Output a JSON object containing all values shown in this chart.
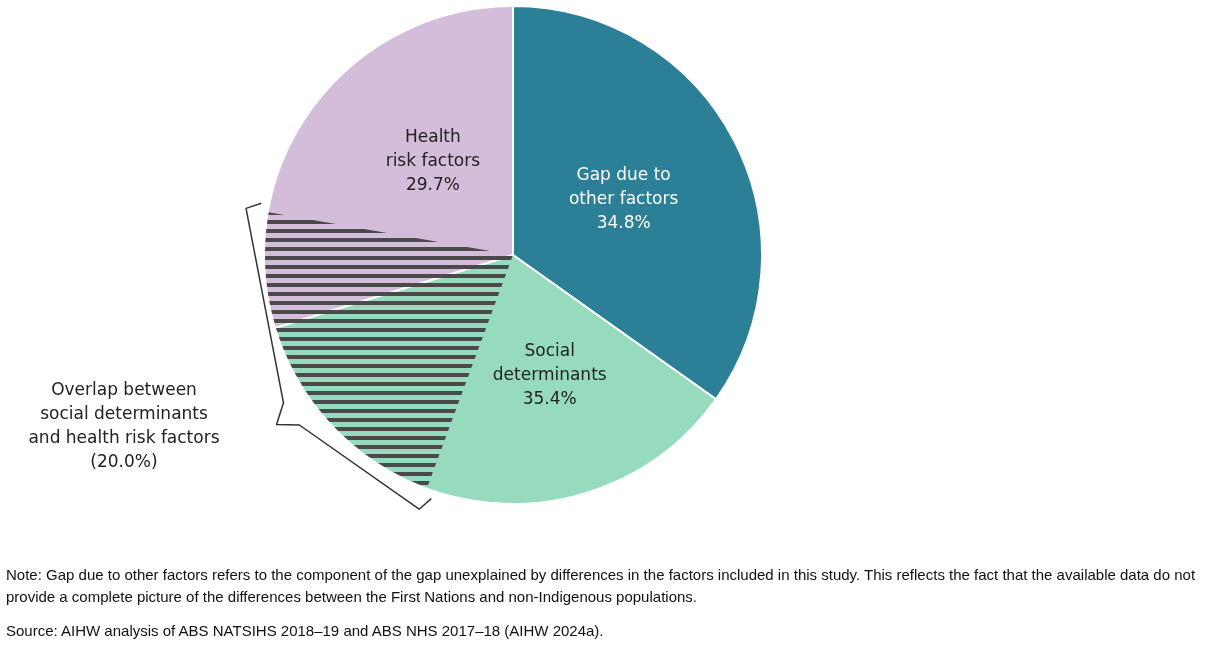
{
  "chart_data": {
    "type": "pie",
    "categories": [
      "Gap due to\nother factors",
      "Social\ndeterminants",
      "Health\nrisk factors"
    ],
    "values": [
      34.8,
      35.4,
      29.7
    ],
    "colors": [
      "#2b7f96",
      "#97dbbf",
      "#d4bddb"
    ],
    "value_labels": [
      "34.8%",
      "35.4%",
      "29.7%"
    ],
    "annotations": [
      "Overlap between\nsocial determinants\nand health risk factors\n(20.0%)",
      "Note: Gap due to other factors refers to the component of the gap unexplained by differences in the factors included in this study. This reflects the fact that the available data do not provide a complete picture of the differences between the First Nations and non-Indigenous populations.",
      "Source: AIHW analysis of ABS NATSIHS 2018–19 and ABS NHS 2017–18 (AIHW 2024a)."
    ]
  }
}
